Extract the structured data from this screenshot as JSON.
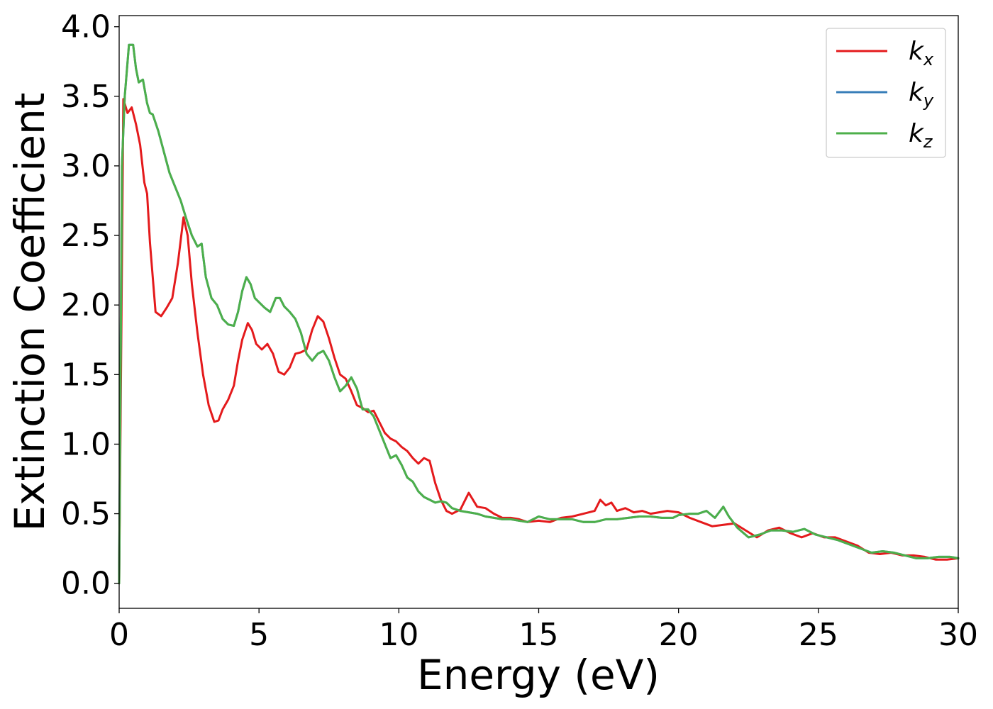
{
  "chart_data": {
    "type": "line",
    "title": "",
    "xlabel": "Energy (eV)",
    "ylabel": "Extinction Coefficient",
    "xlim": [
      0,
      30
    ],
    "ylim": [
      -0.18,
      4.08
    ],
    "xticks": [
      0,
      5,
      10,
      15,
      20,
      25,
      30
    ],
    "xtick_labels": [
      "0",
      "5",
      "10",
      "15",
      "20",
      "25",
      "30"
    ],
    "yticks": [
      0.0,
      0.5,
      1.0,
      1.5,
      2.0,
      2.5,
      3.0,
      3.5,
      4.0
    ],
    "ytick_labels": [
      "0.0",
      "0.5",
      "1.0",
      "1.5",
      "2.0",
      "2.5",
      "3.0",
      "3.5",
      "4.0"
    ],
    "grid": false,
    "legend_position": "top-right",
    "series": [
      {
        "name": "k_x",
        "label_base": "k",
        "label_sub": "x",
        "color": "#e41a1c",
        "x": [
          0,
          0.15,
          0.3,
          0.45,
          0.6,
          0.75,
          0.9,
          1.0,
          1.1,
          1.3,
          1.5,
          1.7,
          1.9,
          2.1,
          2.3,
          2.45,
          2.6,
          2.8,
          3.0,
          3.2,
          3.4,
          3.55,
          3.7,
          3.9,
          4.1,
          4.25,
          4.4,
          4.6,
          4.75,
          4.9,
          5.1,
          5.3,
          5.5,
          5.7,
          5.9,
          6.1,
          6.3,
          6.5,
          6.7,
          6.9,
          7.1,
          7.3,
          7.5,
          7.7,
          7.9,
          8.1,
          8.3,
          8.5,
          8.7,
          8.9,
          9.1,
          9.3,
          9.5,
          9.7,
          9.9,
          10.1,
          10.3,
          10.5,
          10.7,
          10.9,
          11.1,
          11.3,
          11.5,
          11.7,
          11.9,
          12.2,
          12.5,
          12.8,
          13.1,
          13.4,
          13.7,
          14.0,
          14.3,
          14.6,
          15.0,
          15.4,
          15.8,
          16.2,
          16.6,
          17.0,
          17.2,
          17.4,
          17.6,
          17.8,
          18.1,
          18.4,
          18.7,
          19.0,
          19.3,
          19.6,
          20.0,
          20.4,
          20.8,
          21.2,
          21.6,
          22.0,
          22.4,
          22.8,
          23.2,
          23.6,
          24.0,
          24.4,
          24.8,
          25.2,
          25.6,
          26.0,
          26.4,
          26.8,
          27.2,
          27.6,
          28.0,
          28.4,
          28.8,
          29.2,
          29.6,
          30.0
        ],
        "values": [
          0.0,
          3.48,
          3.38,
          3.42,
          3.3,
          3.15,
          2.88,
          2.8,
          2.45,
          1.95,
          1.92,
          1.98,
          2.05,
          2.3,
          2.63,
          2.5,
          2.15,
          1.8,
          1.5,
          1.28,
          1.16,
          1.17,
          1.25,
          1.32,
          1.42,
          1.6,
          1.75,
          1.87,
          1.82,
          1.72,
          1.68,
          1.72,
          1.65,
          1.52,
          1.5,
          1.55,
          1.65,
          1.66,
          1.68,
          1.82,
          1.92,
          1.88,
          1.76,
          1.62,
          1.5,
          1.47,
          1.38,
          1.28,
          1.26,
          1.23,
          1.24,
          1.16,
          1.08,
          1.04,
          1.02,
          0.98,
          0.95,
          0.9,
          0.86,
          0.9,
          0.88,
          0.72,
          0.6,
          0.52,
          0.5,
          0.53,
          0.65,
          0.55,
          0.54,
          0.5,
          0.47,
          0.47,
          0.46,
          0.44,
          0.45,
          0.44,
          0.47,
          0.48,
          0.5,
          0.52,
          0.6,
          0.56,
          0.58,
          0.52,
          0.54,
          0.51,
          0.52,
          0.5,
          0.51,
          0.52,
          0.51,
          0.47,
          0.44,
          0.41,
          0.42,
          0.43,
          0.38,
          0.33,
          0.38,
          0.4,
          0.36,
          0.33,
          0.36,
          0.33,
          0.33,
          0.3,
          0.27,
          0.22,
          0.21,
          0.22,
          0.2,
          0.2,
          0.19,
          0.17,
          0.17,
          0.18
        ]
      },
      {
        "name": "k_y",
        "label_base": "k",
        "label_sub": "y",
        "color": "#377eb8",
        "x": [
          0,
          0.1,
          0.2,
          0.35,
          0.5,
          0.6,
          0.7,
          0.85,
          1.0,
          1.1,
          1.2,
          1.4,
          1.6,
          1.8,
          2.0,
          2.2,
          2.4,
          2.6,
          2.8,
          2.95,
          3.1,
          3.3,
          3.5,
          3.7,
          3.9,
          4.1,
          4.25,
          4.4,
          4.55,
          4.7,
          4.85,
          5.0,
          5.2,
          5.4,
          5.6,
          5.75,
          5.9,
          6.1,
          6.3,
          6.5,
          6.7,
          6.9,
          7.1,
          7.3,
          7.5,
          7.7,
          7.9,
          8.1,
          8.3,
          8.5,
          8.7,
          8.9,
          9.1,
          9.3,
          9.5,
          9.7,
          9.9,
          10.1,
          10.3,
          10.5,
          10.7,
          10.9,
          11.1,
          11.3,
          11.5,
          11.7,
          11.9,
          12.2,
          12.5,
          12.8,
          13.1,
          13.4,
          13.7,
          14.0,
          14.3,
          14.6,
          15.0,
          15.4,
          15.8,
          16.2,
          16.6,
          17.0,
          17.4,
          17.8,
          18.2,
          18.6,
          19.0,
          19.4,
          19.8,
          20.0,
          20.4,
          20.7,
          21.0,
          21.3,
          21.6,
          21.8,
          22.1,
          22.5,
          22.9,
          23.3,
          23.7,
          24.1,
          24.5,
          24.9,
          25.3,
          25.7,
          26.1,
          26.5,
          26.9,
          27.3,
          27.7,
          28.1,
          28.5,
          28.9,
          29.3,
          29.7,
          30.0
        ],
        "values": [
          0.0,
          3.0,
          3.5,
          3.87,
          3.87,
          3.7,
          3.6,
          3.62,
          3.45,
          3.38,
          3.37,
          3.25,
          3.1,
          2.95,
          2.85,
          2.75,
          2.62,
          2.5,
          2.42,
          2.44,
          2.2,
          2.05,
          2.0,
          1.9,
          1.86,
          1.85,
          1.95,
          2.1,
          2.2,
          2.15,
          2.05,
          2.02,
          1.98,
          1.95,
          2.05,
          2.05,
          1.99,
          1.95,
          1.9,
          1.8,
          1.65,
          1.6,
          1.65,
          1.67,
          1.6,
          1.48,
          1.38,
          1.42,
          1.48,
          1.4,
          1.25,
          1.25,
          1.2,
          1.1,
          1.0,
          0.9,
          0.92,
          0.85,
          0.76,
          0.73,
          0.66,
          0.62,
          0.6,
          0.58,
          0.59,
          0.58,
          0.54,
          0.52,
          0.51,
          0.5,
          0.48,
          0.47,
          0.46,
          0.46,
          0.45,
          0.44,
          0.48,
          0.46,
          0.46,
          0.46,
          0.44,
          0.44,
          0.46,
          0.46,
          0.47,
          0.48,
          0.48,
          0.47,
          0.47,
          0.49,
          0.5,
          0.5,
          0.52,
          0.47,
          0.55,
          0.48,
          0.4,
          0.33,
          0.35,
          0.38,
          0.38,
          0.37,
          0.39,
          0.35,
          0.33,
          0.31,
          0.28,
          0.25,
          0.22,
          0.23,
          0.22,
          0.2,
          0.18,
          0.18,
          0.19,
          0.19,
          0.18
        ]
      },
      {
        "name": "k_z",
        "label_base": "k",
        "label_sub": "z",
        "color": "#4daf4a",
        "x": [
          0,
          0.1,
          0.2,
          0.35,
          0.5,
          0.6,
          0.7,
          0.85,
          1.0,
          1.1,
          1.2,
          1.4,
          1.6,
          1.8,
          2.0,
          2.2,
          2.4,
          2.6,
          2.8,
          2.95,
          3.1,
          3.3,
          3.5,
          3.7,
          3.9,
          4.1,
          4.25,
          4.4,
          4.55,
          4.7,
          4.85,
          5.0,
          5.2,
          5.4,
          5.6,
          5.75,
          5.9,
          6.1,
          6.3,
          6.5,
          6.7,
          6.9,
          7.1,
          7.3,
          7.5,
          7.7,
          7.9,
          8.1,
          8.3,
          8.5,
          8.7,
          8.9,
          9.1,
          9.3,
          9.5,
          9.7,
          9.9,
          10.1,
          10.3,
          10.5,
          10.7,
          10.9,
          11.1,
          11.3,
          11.5,
          11.7,
          11.9,
          12.2,
          12.5,
          12.8,
          13.1,
          13.4,
          13.7,
          14.0,
          14.3,
          14.6,
          15.0,
          15.4,
          15.8,
          16.2,
          16.6,
          17.0,
          17.4,
          17.8,
          18.2,
          18.6,
          19.0,
          19.4,
          19.8,
          20.0,
          20.4,
          20.7,
          21.0,
          21.3,
          21.6,
          21.8,
          22.1,
          22.5,
          22.9,
          23.3,
          23.7,
          24.1,
          24.5,
          24.9,
          25.3,
          25.7,
          26.1,
          26.5,
          26.9,
          27.3,
          27.7,
          28.1,
          28.5,
          28.9,
          29.3,
          29.7,
          30.0
        ],
        "values": [
          0.0,
          3.0,
          3.5,
          3.87,
          3.87,
          3.7,
          3.6,
          3.62,
          3.45,
          3.38,
          3.37,
          3.25,
          3.1,
          2.95,
          2.85,
          2.75,
          2.62,
          2.5,
          2.42,
          2.44,
          2.2,
          2.05,
          2.0,
          1.9,
          1.86,
          1.85,
          1.95,
          2.1,
          2.2,
          2.15,
          2.05,
          2.02,
          1.98,
          1.95,
          2.05,
          2.05,
          1.99,
          1.95,
          1.9,
          1.8,
          1.65,
          1.6,
          1.65,
          1.67,
          1.6,
          1.48,
          1.38,
          1.42,
          1.48,
          1.4,
          1.25,
          1.25,
          1.2,
          1.1,
          1.0,
          0.9,
          0.92,
          0.85,
          0.76,
          0.73,
          0.66,
          0.62,
          0.6,
          0.58,
          0.59,
          0.58,
          0.54,
          0.52,
          0.51,
          0.5,
          0.48,
          0.47,
          0.46,
          0.46,
          0.45,
          0.44,
          0.48,
          0.46,
          0.46,
          0.46,
          0.44,
          0.44,
          0.46,
          0.46,
          0.47,
          0.48,
          0.48,
          0.47,
          0.47,
          0.49,
          0.5,
          0.5,
          0.52,
          0.47,
          0.55,
          0.48,
          0.4,
          0.33,
          0.35,
          0.38,
          0.38,
          0.37,
          0.39,
          0.35,
          0.33,
          0.31,
          0.28,
          0.25,
          0.22,
          0.23,
          0.22,
          0.2,
          0.18,
          0.18,
          0.19,
          0.19,
          0.18
        ]
      }
    ]
  }
}
